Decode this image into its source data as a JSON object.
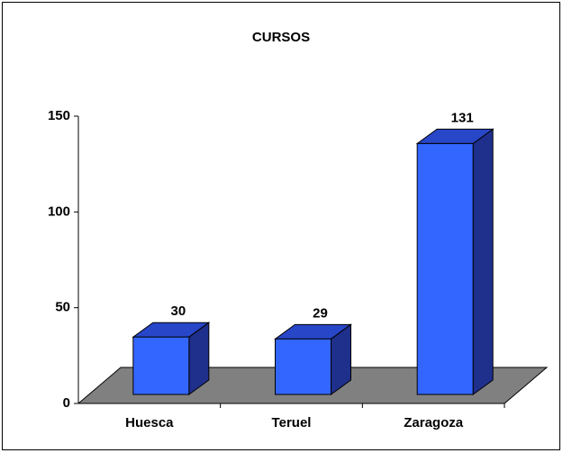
{
  "chart_data": {
    "type": "bar3d",
    "title": "CURSOS",
    "categories": [
      "Huesca",
      "Teruel",
      "Zaragoza"
    ],
    "values": [
      30,
      29,
      131
    ],
    "color": "#3366ff",
    "ylim": [
      0,
      150
    ],
    "yticks": [
      0,
      50,
      100,
      150
    ]
  }
}
